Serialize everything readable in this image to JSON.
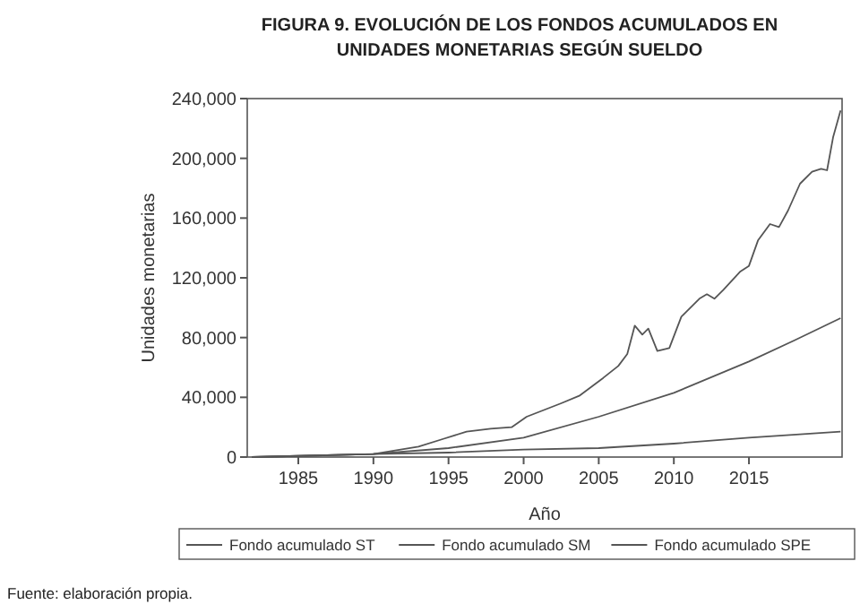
{
  "chart_data": {
    "type": "line",
    "title": "FIGURA 9. EVOLUCIÓN DE LOS FONDOS ACUMULADOS EN UNIDADES MONETARIAS SEGÚN SUELDO",
    "xlabel": "Año",
    "ylabel": "Unidades monetarias",
    "annotations": [
      "Fuente: elaboración propia."
    ],
    "xlim": [
      1981.6,
      2021.2
    ],
    "xticks": [
      1985,
      1990,
      1995,
      2000,
      2005,
      2010,
      2015
    ],
    "ylim": [
      0,
      240000
    ],
    "yticks": [
      {
        "value": 0,
        "label": "0"
      },
      {
        "value": 40000,
        "label": "40,000"
      },
      {
        "value": 80000,
        "label": "80,000"
      },
      {
        "value": 120000,
        "label": "120,000"
      },
      {
        "value": 160000,
        "label": "160,000"
      },
      {
        "value": 200000,
        "label": "200,000"
      },
      {
        "value": 240000,
        "label": "240,000"
      }
    ],
    "grid": false,
    "legend": "bottom",
    "line_style": "solid",
    "marker": "none",
    "series": [
      {
        "name": "Fondo acumulado ST",
        "color": "#555555",
        "x": [
          1981.9,
          1990,
          1993,
          1994.6,
          1996.2,
          1997.8,
          1999.2,
          2000.2,
          2002.5,
          2003.7,
          2005.3,
          2006.3,
          2006.9,
          2007.4,
          2007.9,
          2008.3,
          2008.9,
          2009.7,
          2010.5,
          2011.7,
          2012.2,
          2012.7,
          2013.3,
          2014.4,
          2015,
          2015.6,
          2016.4,
          2017,
          2017.6,
          2018.4,
          2019.2,
          2019.8,
          2020.2,
          2020.6,
          2021.1
        ],
        "values": [
          0,
          2000,
          7000,
          12000,
          17000,
          19000,
          20000,
          27000,
          36000,
          41000,
          53000,
          61000,
          69000,
          88000,
          82000,
          86000,
          71000,
          73000,
          94000,
          106000,
          109000,
          106000,
          112000,
          124000,
          128000,
          145000,
          156000,
          154000,
          165000,
          183000,
          191000,
          193000,
          192000,
          214000,
          232000
        ]
      },
      {
        "name": "Fondo acumulado SM",
        "color": "#555555",
        "x": [
          1981.9,
          1990,
          1995,
          2000,
          2005,
          2010,
          2015,
          2018,
          2021.1
        ],
        "values": [
          0,
          2000,
          6000,
          13000,
          27000,
          43000,
          64000,
          78000,
          93000
        ]
      },
      {
        "name": "Fondo acumulado SPE",
        "color": "#555555",
        "x": [
          1981.9,
          1990,
          1995,
          2000,
          2005,
          2010,
          2015,
          2021.1
        ],
        "values": [
          0,
          2000,
          3000,
          5000,
          6000,
          9000,
          13000,
          17000
        ]
      }
    ]
  }
}
